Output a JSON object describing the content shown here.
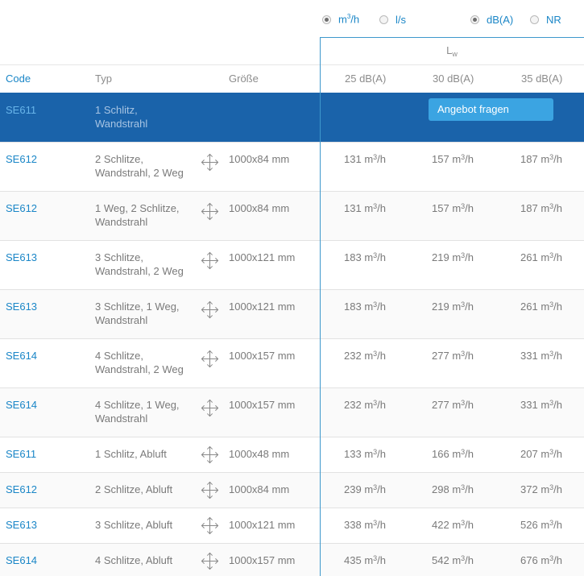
{
  "units": {
    "flow": [
      {
        "label_base": "m",
        "label_sup": "3",
        "label_tail": "/h",
        "checked": true
      },
      {
        "label": "l/s",
        "checked": false
      }
    ],
    "level": [
      {
        "label": "dB(A)",
        "checked": true
      },
      {
        "label": "NR",
        "checked": false
      }
    ]
  },
  "lw": {
    "base": "L",
    "sub": "w"
  },
  "header": {
    "code": "Code",
    "typ": "Typ",
    "groesse": "Größe",
    "cols": [
      "25 dB(A)",
      "30 dB(A)",
      "35 dB(A)"
    ]
  },
  "selected_row": {
    "code": "SE611",
    "typ": [
      "1 Schlitz,",
      "Wandstrahl"
    ],
    "button_label": "Angebot fragen"
  },
  "unit_suffix": {
    "base": " m",
    "sup": "3",
    "tail": "/h"
  },
  "rows": [
    {
      "code": "SE612",
      "typ": [
        "2 Schlitze,",
        "Wandstrahl, 2 Weg"
      ],
      "size": "1000x84 mm",
      "values": [
        "131",
        "157",
        "187"
      ]
    },
    {
      "code": "SE612",
      "typ": [
        "1 Weg, 2 Schlitze,",
        "Wandstrahl"
      ],
      "size": "1000x84 mm",
      "values": [
        "131",
        "157",
        "187"
      ]
    },
    {
      "code": "SE613",
      "typ": [
        "3 Schlitze,",
        "Wandstrahl, 2 Weg"
      ],
      "size": "1000x121 mm",
      "values": [
        "183",
        "219",
        "261"
      ]
    },
    {
      "code": "SE613",
      "typ": [
        "3 Schlitze, 1 Weg,",
        "Wandstrahl"
      ],
      "size": "1000x121 mm",
      "values": [
        "183",
        "219",
        "261"
      ]
    },
    {
      "code": "SE614",
      "typ": [
        "4 Schlitze,",
        "Wandstrahl, 2 Weg"
      ],
      "size": "1000x157 mm",
      "values": [
        "232",
        "277",
        "331"
      ]
    },
    {
      "code": "SE614",
      "typ": [
        "4 Schlitze, 1 Weg,",
        "Wandstrahl"
      ],
      "size": "1000x157 mm",
      "values": [
        "232",
        "277",
        "331"
      ]
    },
    {
      "code": "SE611",
      "typ": [
        "1 Schlitz, Abluft"
      ],
      "size": "1000x48 mm",
      "values": [
        "133",
        "166",
        "207"
      ]
    },
    {
      "code": "SE612",
      "typ": [
        "2 Schlitze, Abluft"
      ],
      "size": "1000x84 mm",
      "values": [
        "239",
        "298",
        "372"
      ]
    },
    {
      "code": "SE613",
      "typ": [
        "3 Schlitze, Abluft"
      ],
      "size": "1000x121 mm",
      "values": [
        "338",
        "422",
        "526"
      ]
    },
    {
      "code": "SE614",
      "typ": [
        "4 Schlitze, Abluft"
      ],
      "size": "1000x157 mm",
      "values": [
        "435",
        "542",
        "676"
      ]
    }
  ]
}
